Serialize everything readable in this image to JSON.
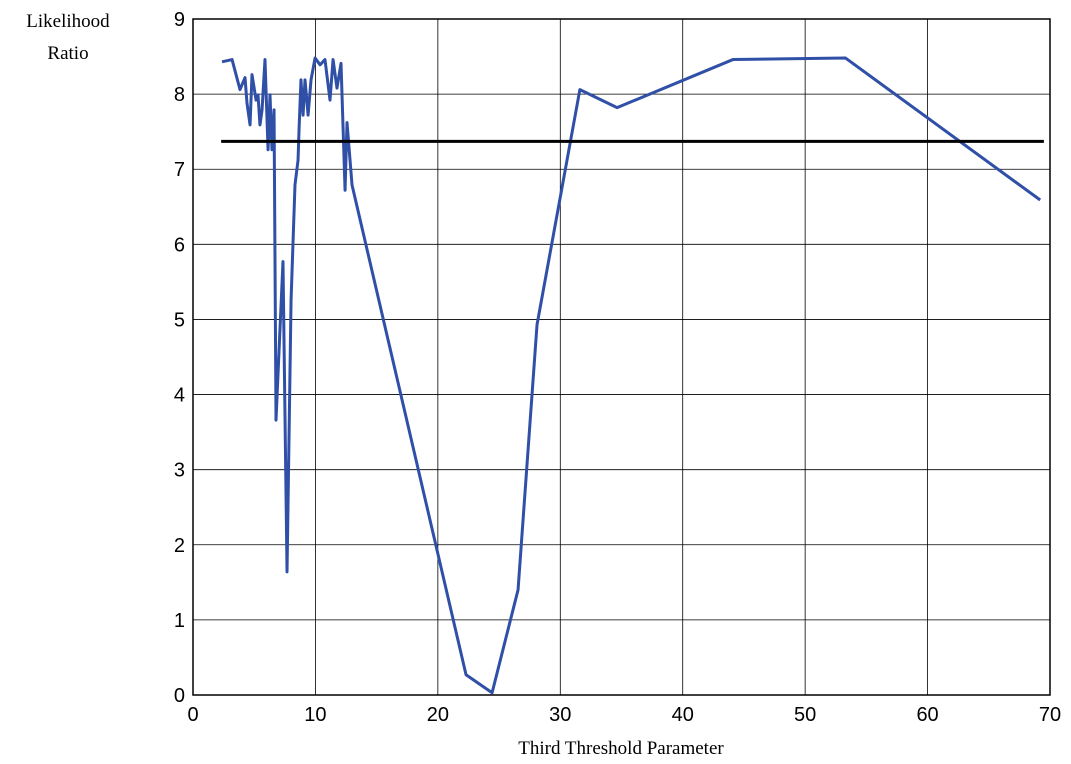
{
  "chart_data": {
    "type": "line",
    "ylabel": [
      "Likelihood",
      "Ratio"
    ],
    "xlabel": "Third Threshold Parameter",
    "xlim": [
      0,
      70
    ],
    "xticks": [
      0,
      10,
      20,
      30,
      40,
      50,
      60,
      70
    ],
    "ylim": [
      0,
      9
    ],
    "yticks": [
      0,
      1,
      2,
      3,
      4,
      5,
      6,
      7,
      8,
      9
    ],
    "grid": true,
    "series": [
      {
        "color": "#3050a8",
        "x": [
          2.37,
          3.19,
          3.84,
          4.25,
          4.41,
          4.66,
          4.82,
          5.15,
          5.31,
          5.47,
          5.64,
          5.88,
          6.13,
          6.29,
          6.45,
          6.62,
          6.78,
          7.03,
          7.35,
          7.68,
          8.01,
          8.33,
          8.58,
          8.66,
          8.82,
          8.99,
          9.15,
          9.4,
          9.64,
          9.97,
          10.38,
          10.78,
          11.19,
          11.44,
          11.76,
          12.09,
          12.42,
          12.58,
          12.99,
          22.3,
          24.43,
          26.55,
          28.1,
          31.6,
          34.64,
          44.1,
          53.3,
          69.2
        ],
        "values": [
          8.43,
          8.46,
          8.06,
          8.22,
          7.88,
          7.59,
          8.26,
          7.92,
          7.99,
          7.59,
          7.79,
          8.46,
          7.26,
          7.99,
          7.26,
          7.79,
          3.66,
          4.59,
          5.77,
          1.64,
          5.26,
          6.79,
          7.12,
          7.52,
          8.19,
          7.72,
          8.19,
          7.72,
          8.19,
          8.48,
          8.39,
          8.46,
          7.92,
          8.46,
          8.08,
          8.41,
          6.72,
          7.62,
          6.79,
          0.27,
          0.03,
          1.4,
          4.93,
          8.06,
          7.82,
          8.46,
          8.48,
          6.59
        ]
      },
      {
        "color": "#000000",
        "x": [
          2.3,
          69.5
        ],
        "values": [
          7.37,
          7.37
        ]
      }
    ]
  }
}
